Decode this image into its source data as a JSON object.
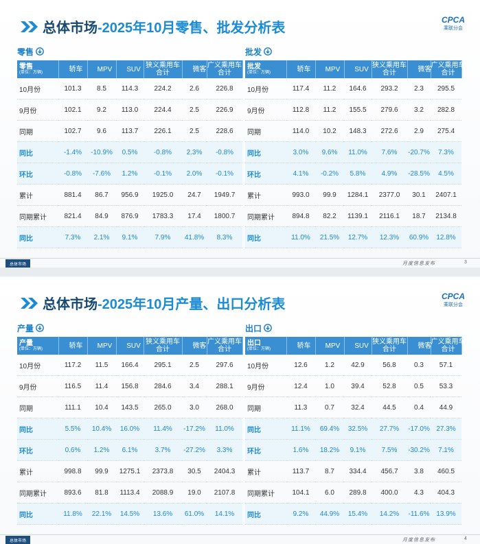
{
  "columns": [
    "轿车",
    "MPV",
    "SUV",
    "狭义乘用车合计",
    "微客",
    "广义乘用车合计"
  ],
  "unit": "(单位：万辆)",
  "logo": {
    "brand": "CPCA",
    "org": "乘联分会"
  },
  "footer": {
    "tab": "总体市场",
    "note": "月度信息发布"
  },
  "slides": [
    {
      "title_main": "总体市场",
      "title_rest": "-2025年10月零售、批发分析表",
      "page": "3",
      "tables": [
        {
          "section": "零售",
          "header_label": "零售",
          "rows": [
            [
              "10月份",
              "101.3",
              "8.5",
              "114.3",
              "224.2",
              "2.6",
              "226.8"
            ],
            [
              "9月份",
              "102.1",
              "9.2",
              "113.0",
              "224.4",
              "2.5",
              "226.9"
            ],
            [
              "同期",
              "102.7",
              "9.6",
              "113.7",
              "226.1",
              "2.5",
              "228.6"
            ],
            [
              "同比",
              "-1.4%",
              "-10.9%",
              "0.5%",
              "-0.8%",
              "2.3%",
              "-0.8%"
            ],
            [
              "环比",
              "-0.8%",
              "-7.6%",
              "1.2%",
              "-0.1%",
              "2.0%",
              "-0.1%"
            ],
            [
              "累计",
              "881.4",
              "86.7",
              "956.9",
              "1925.0",
              "24.7",
              "1949.7"
            ],
            [
              "同期累计",
              "821.4",
              "84.9",
              "876.9",
              "1783.3",
              "17.4",
              "1800.7"
            ],
            [
              "同比",
              "7.3%",
              "2.1%",
              "9.1%",
              "7.9%",
              "41.8%",
              "8.3%"
            ]
          ]
        },
        {
          "section": "批发",
          "header_label": "批发",
          "rows": [
            [
              "10月份",
              "117.4",
              "11.2",
              "164.6",
              "293.2",
              "2.3",
              "295.5"
            ],
            [
              "9月份",
              "112.8",
              "11.2",
              "155.5",
              "279.6",
              "3.2",
              "282.8"
            ],
            [
              "同期",
              "114.0",
              "10.2",
              "148.3",
              "272.6",
              "2.9",
              "275.4"
            ],
            [
              "同比",
              "3.0%",
              "9.6%",
              "11.0%",
              "7.6%",
              "-20.7%",
              "7.3%"
            ],
            [
              "环比",
              "4.1%",
              "-0.2%",
              "5.8%",
              "4.9%",
              "-28.5%",
              "4.5%"
            ],
            [
              "累计",
              "993.0",
              "99.9",
              "1284.1",
              "2377.0",
              "30.1",
              "2407.1"
            ],
            [
              "同期累计",
              "894.8",
              "82.2",
              "1139.1",
              "2116.1",
              "18.7",
              "2134.8"
            ],
            [
              "同比",
              "11.0%",
              "21.5%",
              "12.7%",
              "12.3%",
              "60.9%",
              "12.8%"
            ]
          ]
        }
      ]
    },
    {
      "title_main": "总体市场",
      "title_rest": "-2025年10月产量、出口分析表",
      "page": "4",
      "tables": [
        {
          "section": "产量",
          "header_label": "产量",
          "rows": [
            [
              "10月份",
              "117.2",
              "11.5",
              "166.4",
              "295.1",
              "2.5",
              "297.6"
            ],
            [
              "9月份",
              "116.5",
              "11.4",
              "156.8",
              "284.6",
              "3.4",
              "288.1"
            ],
            [
              "同期",
              "111.1",
              "10.4",
              "143.5",
              "265.0",
              "3.0",
              "268.0"
            ],
            [
              "同比",
              "5.5%",
              "10.4%",
              "16.0%",
              "11.4%",
              "-17.2%",
              "11.0%"
            ],
            [
              "环比",
              "0.6%",
              "1.2%",
              "6.1%",
              "3.7%",
              "-27.2%",
              "3.3%"
            ],
            [
              "累计",
              "998.8",
              "99.9",
              "1275.1",
              "2373.8",
              "30.5",
              "2404.3"
            ],
            [
              "同期累计",
              "893.6",
              "81.8",
              "1113.4",
              "2088.9",
              "19.0",
              "2107.8"
            ],
            [
              "同比",
              "11.8%",
              "22.1%",
              "14.5%",
              "13.6%",
              "61.0%",
              "14.1%"
            ]
          ]
        },
        {
          "section": "出口",
          "header_label": "出口",
          "rows": [
            [
              "10月份",
              "12.6",
              "1.2",
              "42.9",
              "56.8",
              "0.3",
              "57.1"
            ],
            [
              "9月份",
              "12.4",
              "1.0",
              "39.4",
              "52.8",
              "0.5",
              "53.3"
            ],
            [
              "同期",
              "11.3",
              "0.7",
              "32.4",
              "44.5",
              "0.4",
              "44.9"
            ],
            [
              "同比",
              "11.1%",
              "69.4%",
              "32.5%",
              "27.7%",
              "-17.0%",
              "27.3%"
            ],
            [
              "环比",
              "1.6%",
              "18.2%",
              "9.1%",
              "7.5%",
              "-30.2%",
              "7.1%"
            ],
            [
              "累计",
              "113.7",
              "8.7",
              "334.4",
              "456.7",
              "3.8",
              "460.5"
            ],
            [
              "同期累计",
              "104.1",
              "6.0",
              "289.8",
              "400.0",
              "4.3",
              "404.3"
            ],
            [
              "同比",
              "9.2%",
              "44.9%",
              "15.4%",
              "14.2%",
              "-11.6%",
              "13.9%"
            ]
          ]
        }
      ]
    }
  ]
}
